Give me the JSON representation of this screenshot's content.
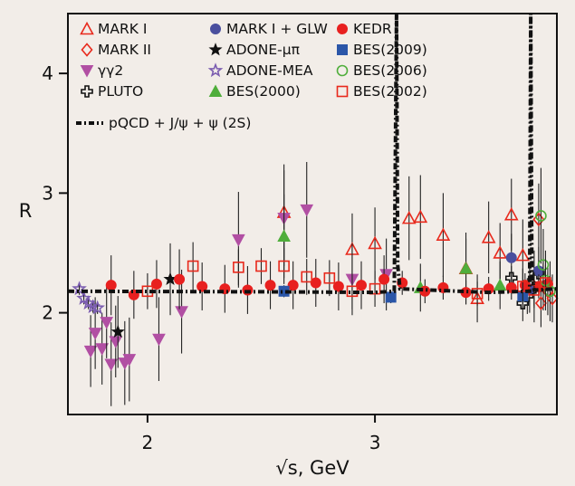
{
  "chart_data": {
    "type": "scatter",
    "xlabel": "√s, GeV",
    "ylabel": "R",
    "xlim": [
      1.65,
      3.8
    ],
    "ylim": [
      1.15,
      4.5
    ],
    "x_ticks": [
      "2",
      "3"
    ],
    "x_tick_values": [
      2,
      3
    ],
    "y_ticks": [
      "2",
      "3",
      "4"
    ],
    "y_tick_values": [
      2,
      3,
      4
    ],
    "grid": false,
    "legend_position": "top",
    "series": [
      {
        "name": "MARK I",
        "marker": "triangle-up-open",
        "color": "#e8291c",
        "points": [
          [
            2.6,
            2.84,
            0.4
          ],
          [
            2.9,
            2.53,
            0.3
          ],
          [
            3.0,
            2.58,
            0.3
          ],
          [
            3.15,
            2.79,
            0.35
          ],
          [
            3.2,
            2.8,
            0.35
          ],
          [
            3.3,
            2.65,
            0.35
          ],
          [
            3.4,
            2.37,
            0.3
          ],
          [
            3.45,
            2.12,
            0.2
          ],
          [
            3.5,
            2.63,
            0.3
          ],
          [
            3.55,
            2.5,
            0.25
          ],
          [
            3.6,
            2.82,
            0.3
          ],
          [
            3.65,
            2.48,
            0.3
          ],
          [
            3.7,
            2.22,
            0.3
          ]
        ]
      },
      {
        "name": "MARK II",
        "marker": "diamond-open",
        "color": "#e8291c",
        "points": [
          [
            3.72,
            2.78,
            0.3
          ],
          [
            3.74,
            2.22,
            0.2
          ],
          [
            3.76,
            2.18,
            0.2
          ],
          [
            3.78,
            2.12,
            0.2
          ],
          [
            3.73,
            2.08,
            0.2
          ]
        ]
      },
      {
        "name": "γγ2",
        "marker": "triangle-down",
        "color": "#b14fa3",
        "points": [
          [
            1.75,
            1.68,
            0.3
          ],
          [
            1.77,
            1.83,
            0.3
          ],
          [
            1.8,
            1.7,
            0.3
          ],
          [
            1.82,
            1.92,
            0.3
          ],
          [
            1.84,
            1.57,
            0.35
          ],
          [
            1.86,
            1.76,
            0.3
          ],
          [
            1.9,
            1.58,
            0.35
          ],
          [
            1.92,
            1.61,
            0.35
          ],
          [
            2.05,
            1.78,
            0.35
          ],
          [
            2.15,
            2.01,
            0.35
          ],
          [
            2.4,
            2.61,
            0.4
          ],
          [
            2.6,
            2.79,
            0.4
          ],
          [
            2.7,
            2.86,
            0.4
          ],
          [
            2.9,
            2.28,
            0.3
          ],
          [
            3.05,
            2.32,
            0.3
          ]
        ]
      },
      {
        "name": "PLUTO",
        "marker": "cross-open",
        "color": "#111111",
        "points": [
          [
            3.6,
            2.29,
            0.1
          ],
          [
            3.65,
            2.08,
            0.15
          ],
          [
            3.67,
            2.14,
            0.15
          ],
          [
            3.7,
            2.21,
            0.15
          ],
          [
            3.72,
            2.33,
            0.15
          ]
        ]
      },
      {
        "name": "MARK I + GLW",
        "marker": "circle",
        "color": "#4a4f9e",
        "points": [
          [
            3.6,
            2.46,
            0.2
          ],
          [
            3.68,
            2.2,
            0.2
          ],
          [
            3.72,
            2.35,
            0.2
          ]
        ]
      },
      {
        "name": "ADONE-μπ",
        "marker": "star",
        "color": "#111111",
        "points": [
          [
            1.87,
            1.84,
            0.3
          ],
          [
            2.1,
            2.28,
            0.3
          ]
        ]
      },
      {
        "name": "ADONE-MEA",
        "marker": "star-open",
        "color": "#7b5db0",
        "points": [
          [
            1.7,
            2.2,
            0.05
          ],
          [
            1.72,
            2.12,
            0.05
          ],
          [
            1.74,
            2.08,
            0.05
          ],
          [
            1.76,
            2.05,
            0.05
          ],
          [
            1.78,
            2.04,
            0.05
          ]
        ]
      },
      {
        "name": "BES(2000)",
        "marker": "triangle-up",
        "color": "#4fae3b",
        "points": [
          [
            2.6,
            2.64,
            0.35
          ],
          [
            3.4,
            2.37,
            0.25
          ],
          [
            3.55,
            2.23,
            0.2
          ],
          [
            3.2,
            2.21,
            0.2
          ]
        ]
      },
      {
        "name": "KEDR",
        "marker": "circle",
        "color": "#e8201f",
        "points": [
          [
            1.84,
            2.23,
            0.25
          ],
          [
            1.94,
            2.15,
            0.2
          ],
          [
            2.04,
            2.24,
            0.2
          ],
          [
            2.14,
            2.28,
            0.25
          ],
          [
            2.24,
            2.22,
            0.2
          ],
          [
            2.34,
            2.2,
            0.2
          ],
          [
            2.44,
            2.19,
            0.2
          ],
          [
            2.54,
            2.23,
            0.2
          ],
          [
            2.64,
            2.23,
            0.2
          ],
          [
            2.74,
            2.25,
            0.2
          ],
          [
            2.84,
            2.22,
            0.2
          ],
          [
            2.94,
            2.23,
            0.2
          ],
          [
            3.04,
            2.28,
            0.2
          ],
          [
            3.12,
            2.25,
            0.1
          ],
          [
            3.22,
            2.18,
            0.1
          ],
          [
            3.3,
            2.21,
            0.1
          ],
          [
            3.4,
            2.17,
            0.1
          ],
          [
            3.5,
            2.2,
            0.1
          ],
          [
            3.6,
            2.21,
            0.1
          ],
          [
            3.66,
            2.23,
            0.1
          ],
          [
            3.72,
            2.22,
            0.1
          ],
          [
            3.76,
            2.24,
            0.1
          ]
        ]
      },
      {
        "name": "BES(2009)",
        "marker": "square",
        "color": "#2b56a8",
        "points": [
          [
            2.6,
            2.18,
            0.05
          ],
          [
            3.07,
            2.13,
            0.05
          ],
          [
            3.65,
            2.14,
            0.05
          ]
        ]
      },
      {
        "name": "BES(2006)",
        "marker": "circle-open",
        "color": "#4fae3b",
        "points": [
          [
            3.73,
            2.81,
            0.4
          ],
          [
            3.74,
            2.4,
            0.3
          ],
          [
            3.75,
            2.27,
            0.25
          ],
          [
            3.77,
            2.18,
            0.25
          ]
        ]
      },
      {
        "name": "BES(2002)",
        "marker": "square-open",
        "color": "#e8291c",
        "points": [
          [
            2.0,
            2.18,
            0.15
          ],
          [
            2.2,
            2.39,
            0.2
          ],
          [
            2.4,
            2.38,
            0.15
          ],
          [
            2.5,
            2.39,
            0.15
          ],
          [
            2.6,
            2.39,
            0.15
          ],
          [
            2.7,
            2.3,
            0.15
          ],
          [
            2.8,
            2.29,
            0.15
          ],
          [
            2.9,
            2.18,
            0.15
          ],
          [
            3.0,
            2.2,
            0.15
          ],
          [
            3.45,
            2.16,
            0.1
          ],
          [
            3.65,
            2.22,
            0.15
          ],
          [
            3.7,
            2.19,
            0.15
          ],
          [
            3.75,
            2.25,
            0.15
          ]
        ]
      },
      {
        "name": "pQCD + J/ψ + ψ (2S)",
        "marker": "dashdot-line",
        "color": "#111111",
        "line": [
          [
            1.65,
            2.18
          ],
          [
            2.6,
            2.175
          ],
          [
            3.0,
            2.17
          ],
          [
            3.085,
            2.18
          ],
          [
            3.095,
            4.5
          ],
          [
            3.1,
            2.4
          ],
          [
            3.11,
            2.2
          ],
          [
            3.5,
            2.17
          ],
          [
            3.68,
            2.18
          ],
          [
            3.685,
            4.5
          ],
          [
            3.69,
            2.3
          ],
          [
            3.7,
            2.19
          ],
          [
            3.8,
            2.2
          ]
        ]
      }
    ]
  }
}
